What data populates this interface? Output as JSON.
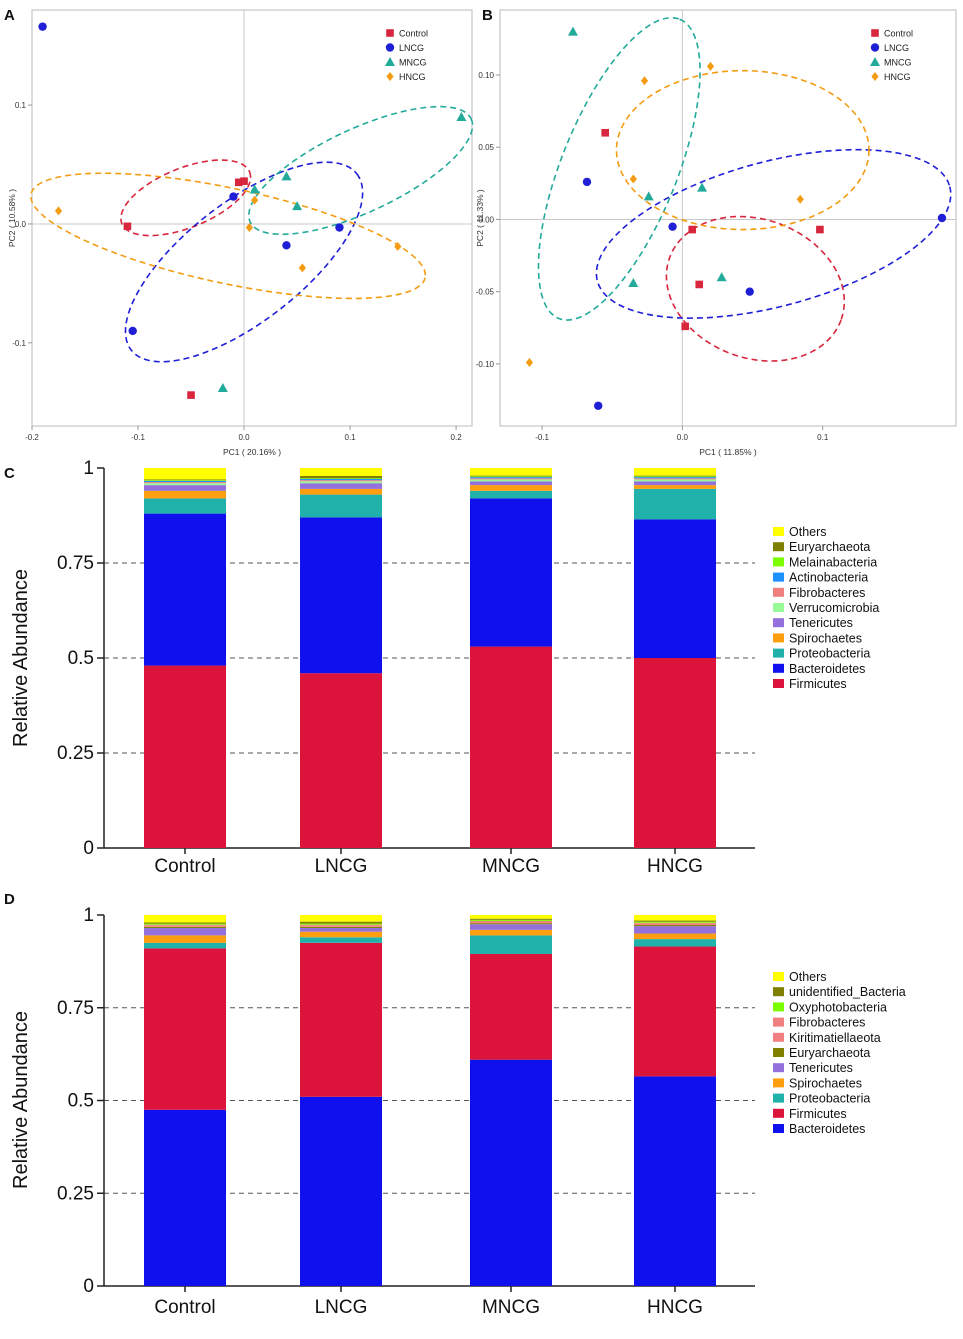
{
  "colors": {
    "Control": "#d7263d",
    "LNCG": "#1f1fd6",
    "MNCG": "#22aa9a",
    "HNCG": "#f39c12",
    "Firmicutes": "#dc143c",
    "Bacteroidetes": "#1010ee",
    "Proteobacteria": "#20b2aa",
    "Spirochaetes": "#ff9f10",
    "Tenericutes": "#9370db",
    "Verrucomicrobia": "#98fb98",
    "Fibrobacteres": "#f08080",
    "Actinobacteria": "#1e90ff",
    "Melainabacteria": "#7cfc00",
    "Euryarchaeota": "#808000",
    "Others": "#ffff00",
    "Kiritimatiellaeota": "#f08080",
    "Oxyphotobacteria": "#7cfc00",
    "unidentified_Bacteria": "#808000"
  },
  "chart_data": [
    {
      "panel": "A",
      "type": "scatter",
      "xlabel": "PC1 ( 20.16% )",
      "ylabel": "PC2 ( 10.58% )",
      "xlim": [
        -0.2,
        0.215
      ],
      "ylim": [
        -0.17,
        0.18
      ],
      "xticks": [
        "-0.2",
        "-0.1",
        "0.0",
        "0.1",
        "0.2"
      ],
      "xtick_values": [
        -0.2,
        -0.1,
        0.0,
        0.1,
        0.2
      ],
      "yticks": [
        "0.1",
        "0.0",
        "-0.1"
      ],
      "ytick_values": [
        0.1,
        0.0,
        -0.1
      ],
      "legend": [
        "Control",
        "LNCG",
        "MNCG",
        "HNCG"
      ],
      "legend_position": "top-right",
      "series": [
        {
          "name": "Control",
          "marker": "square",
          "points": [
            [
              -0.11,
              -0.002
            ],
            [
              -0.005,
              0.035
            ],
            [
              0.0,
              0.036
            ],
            [
              -0.05,
              -0.144
            ]
          ]
        },
        {
          "name": "LNCG",
          "marker": "circle",
          "points": [
            [
              -0.19,
              0.166
            ],
            [
              -0.01,
              0.023
            ],
            [
              0.04,
              -0.018
            ],
            [
              0.09,
              -0.003
            ],
            [
              -0.105,
              -0.09
            ]
          ]
        },
        {
          "name": "MNCG",
          "marker": "triangle",
          "points": [
            [
              0.205,
              0.09
            ],
            [
              0.04,
              0.04
            ],
            [
              0.05,
              0.015
            ],
            [
              0.01,
              0.029
            ],
            [
              -0.02,
              -0.138
            ]
          ]
        },
        {
          "name": "HNCG",
          "marker": "diamond",
          "points": [
            [
              -0.175,
              0.011
            ],
            [
              0.01,
              0.02
            ],
            [
              0.005,
              -0.003
            ],
            [
              0.145,
              -0.019
            ],
            [
              0.055,
              -0.037
            ]
          ]
        }
      ],
      "ellipses": [
        {
          "name": "Control",
          "cx": -0.055,
          "cy": 0.022,
          "rx": 0.065,
          "ry": 0.025,
          "angle": -22
        },
        {
          "name": "LNCG",
          "cx": 0.0,
          "cy": -0.032,
          "rx": 0.135,
          "ry": 0.05,
          "angle": -38
        },
        {
          "name": "MNCG",
          "cx": 0.11,
          "cy": 0.045,
          "rx": 0.115,
          "ry": 0.035,
          "angle": -25
        },
        {
          "name": "HNCG",
          "cx": -0.015,
          "cy": -0.01,
          "rx": 0.19,
          "ry": 0.04,
          "angle": 12
        }
      ]
    },
    {
      "panel": "B",
      "type": "scatter",
      "xlabel": "PC1 ( 11.85% )",
      "ylabel": "PC2 ( 11.33% )",
      "xlim": [
        -0.13,
        0.195
      ],
      "ylim": [
        -0.143,
        0.145
      ],
      "xticks": [
        "-0.1",
        "0.0",
        "0.1"
      ],
      "xtick_values": [
        -0.1,
        0.0,
        0.1
      ],
      "yticks": [
        "0.10",
        "0.05",
        "0.00",
        "-0.05",
        "-0.10"
      ],
      "ytick_values": [
        0.1,
        0.05,
        0.0,
        -0.05,
        -0.1
      ],
      "legend": [
        "Control",
        "LNCG",
        "MNCG",
        "HNCG"
      ],
      "legend_position": "top-right",
      "series": [
        {
          "name": "Control",
          "marker": "square",
          "points": [
            [
              -0.055,
              0.06
            ],
            [
              0.007,
              -0.007
            ],
            [
              0.098,
              -0.007
            ],
            [
              0.012,
              -0.045
            ],
            [
              0.002,
              -0.074
            ]
          ]
        },
        {
          "name": "LNCG",
          "marker": "circle",
          "points": [
            [
              -0.068,
              0.026
            ],
            [
              -0.007,
              -0.005
            ],
            [
              0.185,
              0.001
            ],
            [
              0.048,
              -0.05
            ],
            [
              -0.06,
              -0.129
            ]
          ]
        },
        {
          "name": "MNCG",
          "marker": "triangle",
          "points": [
            [
              -0.078,
              0.13
            ],
            [
              -0.024,
              0.016
            ],
            [
              0.014,
              0.022
            ],
            [
              0.028,
              -0.04
            ],
            [
              -0.035,
              -0.044
            ]
          ]
        },
        {
          "name": "HNCG",
          "marker": "diamond",
          "points": [
            [
              -0.027,
              0.096
            ],
            [
              0.02,
              0.106
            ],
            [
              -0.035,
              0.028
            ],
            [
              0.084,
              0.014
            ],
            [
              -0.109,
              -0.099
            ]
          ]
        }
      ],
      "ellipses": [
        {
          "name": "Control",
          "cx": 0.052,
          "cy": -0.048,
          "rx": 0.065,
          "ry": 0.048,
          "angle": 20
        },
        {
          "name": "LNCG",
          "cx": 0.065,
          "cy": -0.01,
          "rx": 0.13,
          "ry": 0.05,
          "angle": -15
        },
        {
          "name": "MNCG",
          "cx": -0.045,
          "cy": 0.035,
          "rx": 0.115,
          "ry": 0.04,
          "angle": -68
        },
        {
          "name": "HNCG",
          "cx": 0.043,
          "cy": 0.048,
          "rx": 0.09,
          "ry": 0.055,
          "angle": 0
        }
      ]
    },
    {
      "panel": "C",
      "type": "bar",
      "stacked": true,
      "ylabel": "Relative Abundance",
      "ylim": [
        0,
        1
      ],
      "yticks": [
        "0",
        "0.25",
        "0.5",
        "0.75",
        "1"
      ],
      "ytick_values": [
        0,
        0.25,
        0.5,
        0.75,
        1
      ],
      "categories": [
        "Control",
        "LNCG",
        "MNCG",
        "HNCG"
      ],
      "legend": [
        "Others",
        "Euryarchaeota",
        "Melainabacteria",
        "Actinobacteria",
        "Fibrobacteres",
        "Verrucomicrobia",
        "Tenericutes",
        "Spirochaetes",
        "Proteobacteria",
        "Bacteroidetes",
        "Firmicutes"
      ],
      "legend_position": "right",
      "series": [
        {
          "name": "Firmicutes",
          "values": [
            0.48,
            0.46,
            0.53,
            0.5
          ]
        },
        {
          "name": "Bacteroidetes",
          "values": [
            0.4,
            0.41,
            0.39,
            0.365
          ]
        },
        {
          "name": "Proteobacteria",
          "values": [
            0.04,
            0.06,
            0.02,
            0.08
          ]
        },
        {
          "name": "Spirochaetes",
          "values": [
            0.02,
            0.015,
            0.015,
            0.01
          ]
        },
        {
          "name": "Tenericutes",
          "values": [
            0.015,
            0.015,
            0.01,
            0.01
          ]
        },
        {
          "name": "Verrucomicrobia",
          "values": [
            0.005,
            0.005,
            0.005,
            0.005
          ]
        },
        {
          "name": "Fibrobacteres",
          "values": [
            0.003,
            0.003,
            0.003,
            0.003
          ]
        },
        {
          "name": "Actinobacteria",
          "values": [
            0.003,
            0.003,
            0.003,
            0.003
          ]
        },
        {
          "name": "Melainabacteria",
          "values": [
            0.002,
            0.002,
            0.002,
            0.002
          ]
        },
        {
          "name": "Euryarchaeota",
          "values": [
            0.002,
            0.006,
            0.002,
            0.002
          ]
        },
        {
          "name": "Others",
          "values": [
            0.03,
            0.021,
            0.02,
            0.02
          ]
        }
      ]
    },
    {
      "panel": "D",
      "type": "bar",
      "stacked": true,
      "ylabel": "Relative Abundance",
      "ylim": [
        0,
        1
      ],
      "yticks": [
        "0",
        "0.25",
        "0.5",
        "0.75",
        "1"
      ],
      "ytick_values": [
        0,
        0.25,
        0.5,
        0.75,
        1
      ],
      "categories": [
        "Control",
        "LNCG",
        "MNCG",
        "HNCG"
      ],
      "legend": [
        "Others",
        "unidentified_Bacteria",
        "Oxyphotobacteria",
        "Fibrobacteres",
        "Kiritimatiellaeota",
        "Euryarchaeota",
        "Tenericutes",
        "Spirochaetes",
        "Proteobacteria",
        "Firmicutes",
        "Bacteroidetes"
      ],
      "legend_position": "right",
      "series": [
        {
          "name": "Bacteroidetes",
          "values": [
            0.475,
            0.51,
            0.61,
            0.565
          ]
        },
        {
          "name": "Firmicutes",
          "values": [
            0.435,
            0.415,
            0.285,
            0.35
          ]
        },
        {
          "name": "Proteobacteria",
          "values": [
            0.015,
            0.015,
            0.05,
            0.02
          ]
        },
        {
          "name": "Spirochaetes",
          "values": [
            0.02,
            0.015,
            0.015,
            0.015
          ]
        },
        {
          "name": "Tenericutes",
          "values": [
            0.02,
            0.01,
            0.015,
            0.02
          ]
        },
        {
          "name": "Euryarchaeota",
          "values": [
            0.003,
            0.003,
            0.003,
            0.003
          ]
        },
        {
          "name": "Kiritimatiellaeota",
          "values": [
            0.003,
            0.003,
            0.003,
            0.003
          ]
        },
        {
          "name": "Fibrobacteres",
          "values": [
            0.003,
            0.003,
            0.003,
            0.003
          ]
        },
        {
          "name": "Oxyphotobacteria",
          "values": [
            0.003,
            0.003,
            0.003,
            0.003
          ]
        },
        {
          "name": "unidentified_Bacteria",
          "values": [
            0.003,
            0.005,
            0.003,
            0.003
          ]
        },
        {
          "name": "Others",
          "values": [
            0.02,
            0.021,
            0.013,
            0.015
          ]
        }
      ]
    }
  ],
  "panels": {
    "a": "A",
    "b": "B",
    "c": "C",
    "d": "D"
  }
}
